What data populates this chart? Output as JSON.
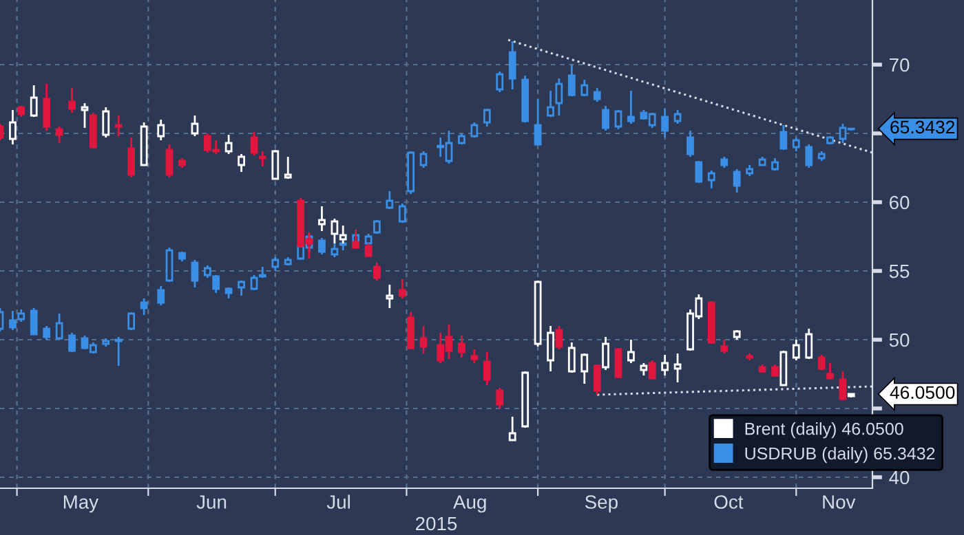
{
  "chart_data": {
    "type": "candlestick",
    "xlabel": "2015",
    "x": [
      "2015-04-27",
      "2015-04-30",
      "2015-05-02",
      "2015-05-05",
      "2015-05-08",
      "2015-05-11",
      "2015-05-14",
      "2015-05-17",
      "2015-05-19",
      "2015-05-22",
      "2015-05-25",
      "2015-05-28",
      "2015-05-31",
      "2015-06-04",
      "2015-06-06",
      "2015-06-09",
      "2015-06-12",
      "2015-06-15",
      "2015-06-17",
      "2015-06-20",
      "2015-06-23",
      "2015-06-26",
      "2015-06-28",
      "2015-07-01",
      "2015-07-04",
      "2015-07-07",
      "2015-07-09",
      "2015-07-12",
      "2015-07-15",
      "2015-07-17",
      "2015-07-20",
      "2015-07-23",
      "2015-07-25",
      "2015-07-28",
      "2015-07-31",
      "2015-08-02",
      "2015-08-05",
      "2015-08-09",
      "2015-08-11",
      "2015-08-14",
      "2015-08-17",
      "2015-08-20",
      "2015-08-23",
      "2015-08-26",
      "2015-08-29",
      "2015-09-01",
      "2015-09-04",
      "2015-09-06",
      "2015-09-09",
      "2015-09-12",
      "2015-09-15",
      "2015-09-17",
      "2015-09-20",
      "2015-09-23",
      "2015-09-26",
      "2015-09-28",
      "2015-10-01",
      "2015-10-04",
      "2015-10-07",
      "2015-10-09",
      "2015-10-12",
      "2015-10-15",
      "2015-10-18",
      "2015-10-21",
      "2015-10-24",
      "2015-10-27",
      "2015-10-29",
      "2015-11-01",
      "2015-11-04",
      "2015-11-07",
      "2015-11-09",
      "2015-11-12",
      "2015-11-14"
    ],
    "series": [
      {
        "name": "Brent (daily) 46.0500",
        "color": "#ffffff",
        "colors": [
          "#e0163f",
          "#ffffff",
          "#e0163f",
          "#ffffff",
          "#e0163f",
          "#e0163f",
          "#e0163f",
          "#ffffff",
          "#e0163f",
          "#ffffff",
          "#e0163f",
          "#e0163f",
          "#ffffff",
          "#ffffff",
          "#e0163f",
          "#e0163f",
          "#ffffff",
          "#e0163f",
          "#e0163f",
          "#ffffff",
          "#ffffff",
          "#e0163f",
          "#e0163f",
          "#ffffff",
          "#ffffff",
          "#e0163f",
          "#e0163f",
          "#ffffff",
          "#ffffff",
          "#ffffff",
          "#e0163f",
          "#e0163f",
          "#e0163f",
          "#ffffff",
          "#e0163f",
          "#e0163f",
          "#e0163f",
          "#e0163f",
          "#e0163f",
          "#e0163f",
          "#e0163f",
          "#e0163f",
          "#e0163f",
          "#ffffff",
          "#ffffff",
          "#ffffff",
          "#ffffff",
          "#e0163f",
          "#ffffff",
          "#ffffff",
          "#e0163f",
          "#ffffff",
          "#e0163f",
          "#ffffff",
          "#ffffff",
          "#e0163f",
          "#ffffff",
          "#ffffff",
          "#ffffff",
          "#ffffff",
          "#e0163f",
          "#e0163f",
          "#ffffff",
          "#e0163f",
          "#e0163f",
          "#e0163f",
          "#ffffff",
          "#ffffff",
          "#ffffff",
          "#e0163f",
          "#e0163f",
          "#e0163f",
          "#ffffff"
        ],
        "ohlc": [
          [
            65.5,
            65.7,
            64.5,
            64.7
          ],
          [
            64.6,
            66.7,
            64.2,
            65.8
          ],
          [
            66.9,
            67.0,
            66.2,
            66.4
          ],
          [
            66.3,
            68.5,
            66.2,
            67.6
          ],
          [
            67.5,
            68.6,
            65.2,
            65.5
          ],
          [
            65.3,
            65.5,
            64.3,
            64.9
          ],
          [
            67.3,
            68.3,
            66.5,
            66.8
          ],
          [
            66.7,
            67.2,
            65.4,
            66.9
          ],
          [
            66.3,
            66.5,
            63.9,
            64.0
          ],
          [
            64.9,
            66.9,
            64.7,
            66.6
          ],
          [
            65.6,
            66.3,
            64.8,
            65.5
          ],
          [
            63.9,
            64.7,
            61.8,
            62.0
          ],
          [
            62.7,
            65.8,
            62.7,
            65.5
          ],
          [
            64.8,
            66.0,
            64.5,
            65.6
          ],
          [
            63.8,
            64.2,
            61.8,
            62.0
          ],
          [
            63.0,
            63.2,
            62.5,
            62.7
          ],
          [
            65.0,
            66.3,
            64.8,
            65.7
          ],
          [
            64.8,
            65.0,
            63.6,
            63.8
          ],
          [
            63.8,
            64.5,
            63.5,
            63.7
          ],
          [
            63.7,
            64.9,
            63.5,
            64.3
          ],
          [
            62.7,
            63.5,
            62.2,
            63.3
          ],
          [
            64.7,
            65.1,
            63.4,
            63.6
          ],
          [
            63.3,
            63.7,
            62.6,
            63.2
          ],
          [
            61.7,
            63.8,
            61.7,
            63.7
          ],
          [
            61.8,
            63.3,
            61.7,
            62.0
          ],
          [
            60.1,
            60.3,
            56.7,
            56.8
          ],
          [
            57.3,
            57.8,
            55.9,
            57.0
          ],
          [
            58.4,
            59.7,
            57.9,
            58.7
          ],
          [
            57.7,
            58.8,
            57.0,
            58.6
          ],
          [
            57.3,
            58.3,
            57.0,
            57.6
          ],
          [
            57.1,
            58.0,
            56.6,
            56.7
          ],
          [
            56.8,
            57.0,
            56.0,
            56.1
          ],
          [
            55.3,
            55.6,
            54.3,
            54.5
          ],
          [
            53.0,
            54.0,
            52.3,
            53.2
          ],
          [
            53.6,
            54.4,
            53.0,
            53.2
          ],
          [
            51.6,
            52.0,
            49.3,
            49.4
          ],
          [
            50.1,
            51.0,
            49.0,
            49.5
          ],
          [
            49.6,
            50.5,
            48.3,
            48.5
          ],
          [
            50.2,
            51.1,
            48.6,
            49.2
          ],
          [
            49.7,
            50.3,
            48.7,
            49.1
          ],
          [
            48.8,
            49.3,
            48.3,
            48.6
          ],
          [
            48.4,
            49.1,
            46.7,
            47.1
          ],
          [
            46.3,
            46.5,
            45.0,
            45.3
          ],
          [
            42.7,
            44.4,
            42.7,
            43.2
          ],
          [
            43.7,
            47.7,
            43.6,
            47.6
          ],
          [
            49.7,
            54.3,
            49.5,
            54.2
          ],
          [
            48.5,
            51.0,
            47.7,
            50.5
          ],
          [
            50.7,
            51.0,
            49.3,
            49.5
          ],
          [
            47.7,
            49.8,
            47.6,
            49.4
          ],
          [
            47.7,
            49.0,
            46.8,
            48.9
          ],
          [
            48.1,
            48.2,
            46.0,
            46.3
          ],
          [
            48.0,
            50.2,
            47.8,
            49.7
          ],
          [
            49.3,
            49.4,
            47.2,
            47.3
          ],
          [
            48.5,
            50.0,
            48.3,
            49.1
          ],
          [
            47.8,
            48.3,
            47.4,
            48.1
          ],
          [
            48.3,
            48.5,
            47.1,
            47.2
          ],
          [
            47.8,
            48.9,
            47.4,
            48.3
          ],
          [
            47.9,
            49.0,
            46.9,
            48.2
          ],
          [
            49.3,
            52.2,
            49.2,
            51.9
          ],
          [
            51.7,
            53.3,
            51.5,
            53.0
          ],
          [
            52.7,
            52.8,
            49.7,
            49.8
          ],
          [
            49.5,
            50.0,
            49.0,
            49.2
          ],
          [
            50.2,
            50.7,
            50.0,
            50.6
          ],
          [
            48.8,
            49.0,
            48.5,
            48.7
          ],
          [
            48.0,
            48.2,
            47.6,
            47.7
          ],
          [
            48.0,
            48.2,
            47.3,
            47.4
          ],
          [
            46.7,
            49.2,
            46.7,
            49.1
          ],
          [
            48.7,
            50.0,
            48.5,
            49.6
          ],
          [
            48.7,
            50.8,
            48.6,
            50.4
          ],
          [
            48.7,
            48.9,
            47.8,
            47.9
          ],
          [
            47.5,
            48.3,
            47.1,
            47.2
          ],
          [
            47.1,
            47.7,
            45.6,
            45.7
          ],
          [
            45.9,
            46.1,
            45.8,
            46.05
          ]
        ]
      },
      {
        "name": "USDRUB (daily) 65.3432",
        "color": "#3a8ee6",
        "colors": [
          "#3a8ee6",
          "#3a8ee6",
          "#3a8ee6",
          "#3a8ee6",
          "#3a8ee6",
          "#3a8ee6",
          "#3a8ee6",
          "#3a8ee6",
          "#3a8ee6",
          "#3a8ee6",
          "#3a8ee6",
          "#3a8ee6",
          "#3a8ee6",
          "#3a8ee6",
          "#3a8ee6",
          "#3a8ee6",
          "#3a8ee6",
          "#3a8ee6",
          "#3a8ee6",
          "#3a8ee6",
          "#3a8ee6",
          "#3a8ee6",
          "#3a8ee6",
          "#3a8ee6",
          "#3a8ee6",
          "#3a8ee6",
          "#3a8ee6",
          "#3a8ee6",
          "#3a8ee6",
          "#3a8ee6",
          "#3a8ee6",
          "#3a8ee6",
          "#3a8ee6",
          "#3a8ee6",
          "#3a8ee6",
          "#3a8ee6",
          "#3a8ee6",
          "#3a8ee6",
          "#3a8ee6",
          "#3a8ee6",
          "#3a8ee6",
          "#3a8ee6",
          "#3a8ee6",
          "#3a8ee6",
          "#3a8ee6",
          "#3a8ee6",
          "#3a8ee6",
          "#3a8ee6",
          "#3a8ee6",
          "#3a8ee6",
          "#3a8ee6",
          "#3a8ee6",
          "#3a8ee6",
          "#3a8ee6",
          "#3a8ee6",
          "#3a8ee6",
          "#3a8ee6",
          "#3a8ee6",
          "#3a8ee6",
          "#3a8ee6",
          "#3a8ee6",
          "#3a8ee6",
          "#3a8ee6",
          "#3a8ee6",
          "#3a8ee6",
          "#3a8ee6",
          "#3a8ee6",
          "#3a8ee6",
          "#3a8ee6",
          "#3a8ee6",
          "#3a8ee6",
          "#3a8ee6",
          "#3a8ee6"
        ],
        "ohlc": [
          [
            50.8,
            52.3,
            50.6,
            52.0
          ],
          [
            51.4,
            52.1,
            50.7,
            50.9
          ],
          [
            51.5,
            52.2,
            51.3,
            51.9
          ],
          [
            52.1,
            52.3,
            50.4,
            50.4
          ],
          [
            50.8,
            51.0,
            50.0,
            50.2
          ],
          [
            50.1,
            51.9,
            50.0,
            51.2
          ],
          [
            50.3,
            50.5,
            49.1,
            49.2
          ],
          [
            50.1,
            50.3,
            49.3,
            49.4
          ],
          [
            49.1,
            49.8,
            49.0,
            49.6
          ],
          [
            49.7,
            50.1,
            49.5,
            49.9
          ],
          [
            49.9,
            50.2,
            48.1,
            50.0
          ],
          [
            50.8,
            52.0,
            50.7,
            51.9
          ],
          [
            52.7,
            53.0,
            51.8,
            52.3
          ],
          [
            53.6,
            53.9,
            52.5,
            52.7
          ],
          [
            54.3,
            56.7,
            54.2,
            56.5
          ],
          [
            56.3,
            56.4,
            55.7,
            55.9
          ],
          [
            55.6,
            55.8,
            53.8,
            54.3
          ],
          [
            54.7,
            55.4,
            54.5,
            55.2
          ],
          [
            54.6,
            54.7,
            53.4,
            53.7
          ],
          [
            53.7,
            53.8,
            53.0,
            53.4
          ],
          [
            53.8,
            54.3,
            53.2,
            54.2
          ],
          [
            53.7,
            54.7,
            53.6,
            54.5
          ],
          [
            54.6,
            55.3,
            54.5,
            54.7
          ],
          [
            55.3,
            56.0,
            55.0,
            55.8
          ],
          [
            55.5,
            56.0,
            55.4,
            55.8
          ],
          [
            55.9,
            56.9,
            55.8,
            56.8
          ],
          [
            56.7,
            57.7,
            56.4,
            57.5
          ],
          [
            57.2,
            57.4,
            56.2,
            56.4
          ],
          [
            56.2,
            57.1,
            56.0,
            56.6
          ],
          [
            56.9,
            57.3,
            56.5,
            57.0
          ],
          [
            57.1,
            57.7,
            57.0,
            57.6
          ],
          [
            57.0,
            57.7,
            56.9,
            57.5
          ],
          [
            57.8,
            58.7,
            57.7,
            58.6
          ],
          [
            59.6,
            60.8,
            59.5,
            60.1
          ],
          [
            58.6,
            59.9,
            58.5,
            59.7
          ],
          [
            60.8,
            63.7,
            60.6,
            63.6
          ],
          [
            62.7,
            63.7,
            62.5,
            63.5
          ],
          [
            64.0,
            64.7,
            63.3,
            64.1
          ],
          [
            63.0,
            65.2,
            62.8,
            64.3
          ],
          [
            64.3,
            65.0,
            64.2,
            64.8
          ],
          [
            64.8,
            65.8,
            64.7,
            65.6
          ],
          [
            65.8,
            66.8,
            65.5,
            66.7
          ],
          [
            68.2,
            69.5,
            68.0,
            69.3
          ],
          [
            70.9,
            71.7,
            68.2,
            69.0
          ],
          [
            68.9,
            69.2,
            65.8,
            65.9
          ],
          [
            65.6,
            67.5,
            64.2,
            64.2
          ],
          [
            66.3,
            68.1,
            66.2,
            66.9
          ],
          [
            67.2,
            69.0,
            66.3,
            68.6
          ],
          [
            69.2,
            70.0,
            67.7,
            67.8
          ],
          [
            67.8,
            68.9,
            67.7,
            68.5
          ],
          [
            68.0,
            68.3,
            67.3,
            67.5
          ],
          [
            66.7,
            67.0,
            65.2,
            65.4
          ],
          [
            65.5,
            66.7,
            65.3,
            66.6
          ],
          [
            66.2,
            68.1,
            65.7,
            65.9
          ],
          [
            66.5,
            66.7,
            66.0,
            66.1
          ],
          [
            65.6,
            66.5,
            65.4,
            66.4
          ],
          [
            66.2,
            66.8,
            64.7,
            65.2
          ],
          [
            65.9,
            66.7,
            65.7,
            66.4
          ],
          [
            64.7,
            65.2,
            63.3,
            63.5
          ],
          [
            62.9,
            63.0,
            61.4,
            61.5
          ],
          [
            61.6,
            62.3,
            61.0,
            62.1
          ],
          [
            63.1,
            63.3,
            62.5,
            62.7
          ],
          [
            62.2,
            62.4,
            60.7,
            61.2
          ],
          [
            62.1,
            62.7,
            61.9,
            62.4
          ],
          [
            62.7,
            63.3,
            62.7,
            63.1
          ],
          [
            62.4,
            63.2,
            62.3,
            62.9
          ],
          [
            65.1,
            65.6,
            63.8,
            63.9
          ],
          [
            64.0,
            64.7,
            63.7,
            64.5
          ],
          [
            64.0,
            64.2,
            62.5,
            62.7
          ],
          [
            63.2,
            63.7,
            63.0,
            63.5
          ],
          [
            64.3,
            64.8,
            64.2,
            64.7
          ],
          [
            64.6,
            65.7,
            64.3,
            65.4
          ],
          [
            65.3,
            65.4,
            65.2,
            65.3432
          ]
        ]
      },
      {
        "type": "line",
        "color": "#d8dde6",
        "line_style": "dotted",
        "x": [
          "2015-08-25",
          "2015-11-19"
        ],
        "values": [
          71.8,
          63.6
        ]
      },
      {
        "type": "line",
        "color": "#d8dde6",
        "line_style": "dotted",
        "x": [
          "2015-09-15",
          "2015-11-19"
        ],
        "values": [
          46.0,
          46.6
        ]
      }
    ],
    "annotations": [
      "46.0500",
      "65.3432"
    ],
    "xlim": [
      "2015-04-27",
      "2015-11-19"
    ],
    "xticks": [
      {
        "value": "2015-05-01",
        "label": null
      },
      {
        "value": "2015-05-16",
        "label": "May"
      },
      {
        "value": "2015-06-01",
        "label": null
      },
      {
        "value": "2015-06-16",
        "label": "Jun"
      },
      {
        "value": "2015-07-01",
        "label": null
      },
      {
        "value": "2015-07-16",
        "label": "Jul"
      },
      {
        "value": "2015-08-01",
        "label": null
      },
      {
        "value": "2015-08-16",
        "label": "Aug"
      },
      {
        "value": "2015-09-01",
        "label": null
      },
      {
        "value": "2015-09-16",
        "label": "Sep"
      },
      {
        "value": "2015-10-01",
        "label": null
      },
      {
        "value": "2015-10-16",
        "label": "Oct"
      },
      {
        "value": "2015-11-01",
        "label": null
      },
      {
        "value": "2015-11-11",
        "label": "Nov"
      }
    ],
    "ylim": [
      39.2,
      74.7
    ],
    "yticks": [
      40,
      {
        "value": 45,
        "label": null
      },
      50,
      55,
      60,
      {
        "value": 65,
        "label": null
      },
      70
    ],
    "grid": true,
    "legend": "bottom right"
  }
}
